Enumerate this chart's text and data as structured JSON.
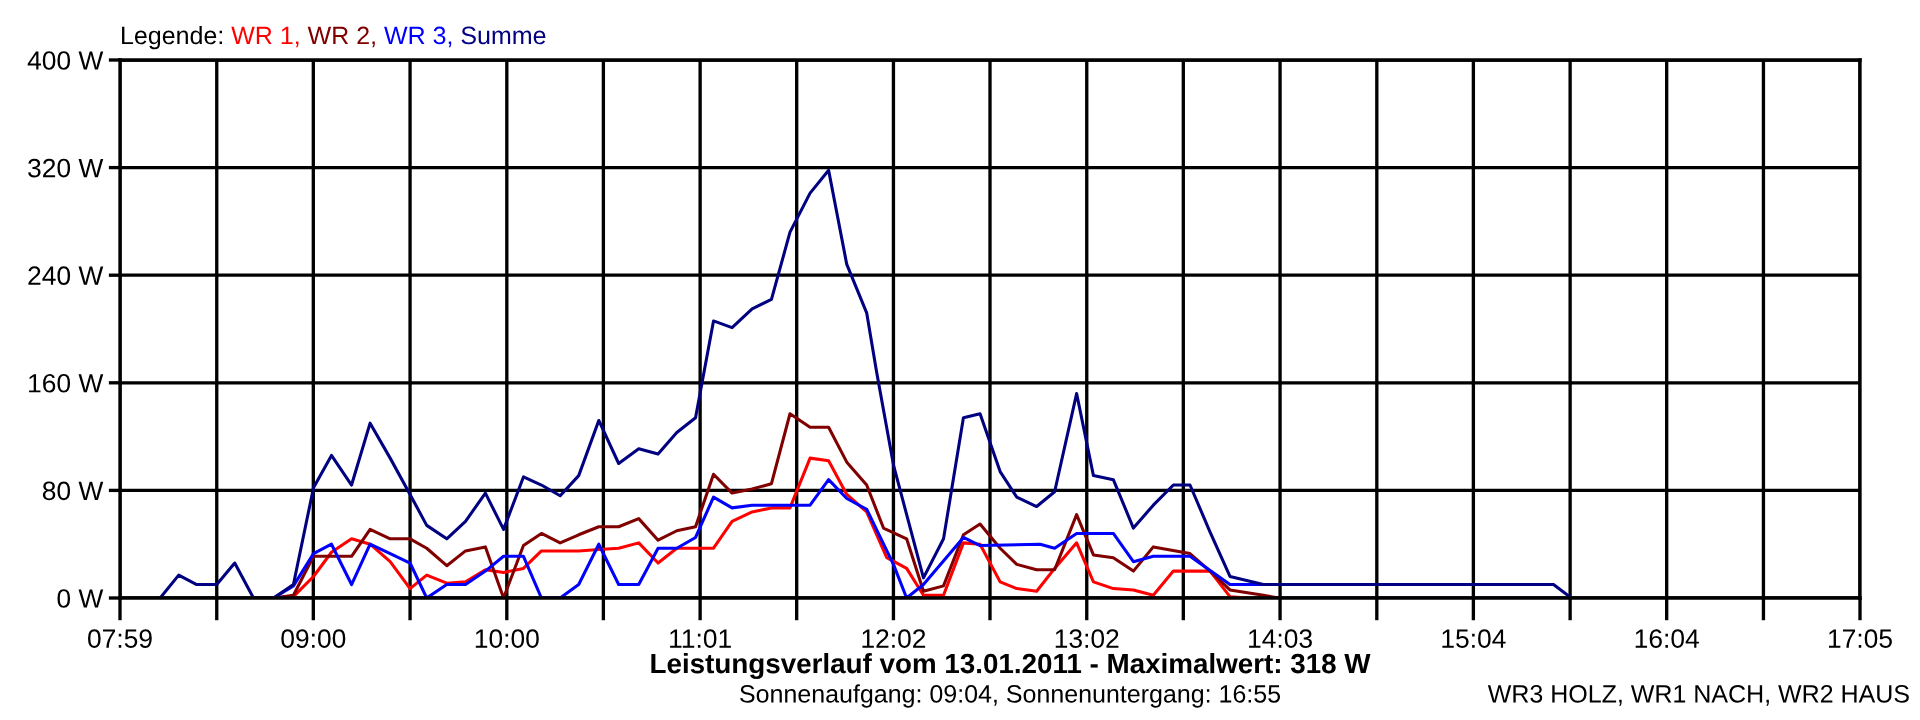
{
  "chart_data": {
    "type": "line",
    "title": "Leistungsverlauf vom 13.01.2011 - Maximalwert: 318 W",
    "subtitle": "Sonnenaufgang: 09:04, Sonnenuntergang: 16:55",
    "annotations": [
      "WR3 HOLZ, WR1 NACH, WR2 HAUS"
    ],
    "legend_title": "Legende:",
    "legend": "top left",
    "grid": true,
    "marker": "none",
    "line_style": "solid",
    "xlim": [
      7.983,
      17.083
    ],
    "xticks": [
      {
        "value": 7.983,
        "label": "07:59"
      },
      {
        "value": 8.489,
        "label": null
      },
      {
        "value": 8.994,
        "label": "09:00"
      },
      {
        "value": 9.5,
        "label": null
      },
      {
        "value": 10.006,
        "label": "10:00"
      },
      {
        "value": 10.511,
        "label": null
      },
      {
        "value": 11.017,
        "label": "11:01"
      },
      {
        "value": 11.522,
        "label": null
      },
      {
        "value": 12.028,
        "label": "12:02"
      },
      {
        "value": 12.533,
        "label": null
      },
      {
        "value": 13.039,
        "label": "13:02"
      },
      {
        "value": 13.544,
        "label": null
      },
      {
        "value": 14.05,
        "label": "14:03"
      },
      {
        "value": 14.556,
        "label": null
      },
      {
        "value": 15.061,
        "label": "15:04"
      },
      {
        "value": 15.567,
        "label": null
      },
      {
        "value": 16.072,
        "label": "16:04"
      },
      {
        "value": 16.578,
        "label": null
      },
      {
        "value": 17.083,
        "label": "17:05"
      }
    ],
    "ylim": [
      0,
      400
    ],
    "yticks": [
      {
        "value": 0,
        "label": "0 W"
      },
      {
        "value": 80,
        "label": "80 W"
      },
      {
        "value": 160,
        "label": "160 W"
      },
      {
        "value": 240,
        "label": "240 W"
      },
      {
        "value": 320,
        "label": "320 W"
      },
      {
        "value": 400,
        "label": "400 W"
      }
    ],
    "series": [
      {
        "name": "WR 1,",
        "color": "#ff0000",
        "x": [
          8.786,
          8.89,
          8.995,
          9.089,
          9.194,
          9.291,
          9.396,
          9.5,
          9.587,
          9.692,
          9.79,
          9.894,
          9.989,
          10.093,
          10.187,
          10.382,
          10.487,
          10.591,
          10.696,
          10.797,
          10.895,
          11.087,
          11.184,
          11.289,
          11.39,
          11.487,
          11.592,
          11.689,
          11.784,
          11.888,
          11.993,
          12.097,
          12.185,
          12.29,
          12.394,
          12.481,
          12.586,
          12.673,
          12.777,
          12.871,
          12.986,
          13.074,
          13.178,
          13.283,
          13.387,
          13.492,
          13.684,
          13.788,
          13.875
        ],
        "values": [
          0,
          1,
          16,
          34,
          44,
          40,
          27,
          7,
          17,
          11,
          12,
          21,
          19,
          22,
          35,
          35,
          36,
          37,
          41,
          26,
          37,
          37,
          57,
          64,
          67,
          67,
          104,
          102,
          77,
          64,
          30,
          22,
          2,
          2,
          41,
          40,
          12,
          7,
          5,
          22,
          41,
          12,
          7,
          6,
          2,
          20,
          20,
          1,
          0
        ]
      },
      {
        "name": "WR 2,",
        "color": "#800000",
        "x": [
          8.786,
          8.89,
          8.995,
          9.194,
          9.291,
          9.396,
          9.5,
          9.587,
          9.692,
          9.79,
          9.894,
          9.989,
          10.093,
          10.187,
          10.285,
          10.382,
          10.487,
          10.591,
          10.696,
          10.797,
          10.895,
          10.993,
          11.087,
          11.184,
          11.289,
          11.39,
          11.487,
          11.592,
          11.689,
          11.784,
          11.888,
          11.976,
          12.097,
          12.185,
          12.29,
          12.394,
          12.481,
          12.586,
          12.673,
          12.777,
          12.871,
          12.986,
          13.074,
          13.178,
          13.283,
          13.387,
          13.579,
          13.684,
          13.788,
          13.963,
          14.043
        ],
        "values": [
          0,
          2,
          31,
          31,
          51,
          44,
          44,
          37,
          24,
          35,
          38,
          0,
          39,
          48,
          41,
          47,
          53,
          53,
          59,
          43,
          50,
          53,
          92,
          78,
          81,
          85,
          137,
          127,
          127,
          101,
          84,
          52,
          44,
          5,
          9,
          47,
          55,
          37,
          25,
          21,
          21,
          62,
          32,
          30,
          20,
          38,
          33,
          20,
          6,
          2,
          0
        ]
      },
      {
        "name": "WR 3,",
        "color": "#0000ff",
        "x": [
          8.786,
          8.89,
          8.995,
          9.089,
          9.194,
          9.291,
          9.396,
          9.5,
          9.587,
          9.692,
          9.79,
          9.894,
          9.989,
          10.093,
          10.187,
          10.285,
          10.382,
          10.487,
          10.591,
          10.696,
          10.797,
          10.895,
          10.993,
          11.087,
          11.184,
          11.289,
          11.487,
          11.592,
          11.689,
          11.784,
          11.888,
          12.028,
          12.097,
          12.185,
          12.394,
          12.481,
          12.795,
          12.871,
          12.986,
          13.178,
          13.283,
          13.387,
          13.579,
          13.788,
          13.963
        ],
        "values": [
          0,
          9,
          33,
          40,
          10,
          40,
          33,
          26,
          0,
          10,
          10,
          20,
          31,
          31,
          0,
          0,
          10,
          40,
          10,
          10,
          37,
          37,
          45,
          75,
          67,
          69,
          69,
          69,
          88,
          74,
          66,
          25,
          0,
          10,
          45,
          39,
          40,
          37,
          48,
          48,
          27,
          31,
          31,
          10,
          10
        ]
      },
      {
        "name": "Summe",
        "color": "#000080",
        "x": [
          8.193,
          8.29,
          8.384,
          8.489,
          8.583,
          8.681,
          8.786,
          8.89,
          8.995,
          9.089,
          9.194,
          9.291,
          9.396,
          9.5,
          9.587,
          9.692,
          9.79,
          9.894,
          9.989,
          10.093,
          10.187,
          10.285,
          10.382,
          10.487,
          10.591,
          10.696,
          10.797,
          10.895,
          10.993,
          11.087,
          11.184,
          11.289,
          11.39,
          11.487,
          11.592,
          11.689,
          11.784,
          11.888,
          11.94,
          12.028,
          12.185,
          12.29,
          12.394,
          12.481,
          12.586,
          12.673,
          12.777,
          12.871,
          12.986,
          13.074,
          13.178,
          13.283,
          13.387,
          13.492,
          13.579,
          13.684,
          13.788,
          13.963,
          15.48,
          15.574
        ],
        "values": [
          0,
          17,
          10,
          10,
          26,
          0,
          0,
          10,
          82,
          106,
          84,
          130,
          104,
          77,
          54,
          44,
          57,
          78,
          51,
          90,
          84,
          76,
          91,
          132,
          100,
          111,
          107,
          123,
          134,
          206,
          201,
          215,
          222,
          272,
          301,
          318,
          248,
          212,
          168,
          99,
          15,
          44,
          134,
          137,
          94,
          75,
          68,
          79,
          152,
          91,
          88,
          52,
          69,
          84,
          84,
          49,
          16,
          10,
          10,
          0
        ]
      }
    ]
  }
}
